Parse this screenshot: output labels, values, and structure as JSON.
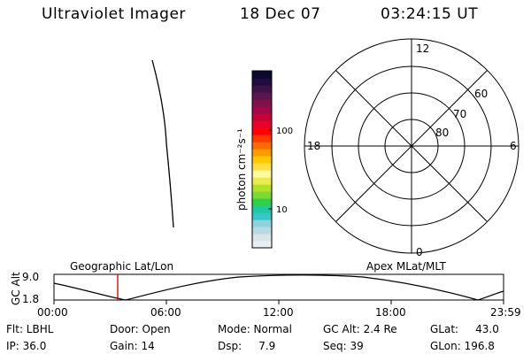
{
  "header": {
    "instrument": "Ultraviolet Imager",
    "date": "18 Dec 07",
    "time": "03:24:15 UT"
  },
  "colorbar": {
    "unit_label": "photon cm⁻²s⁻¹",
    "tick_labels": [
      "100",
      "10"
    ],
    "colors": [
      "#e8eef2",
      "#d8e4ea",
      "#bcd8e2",
      "#8cd4dc",
      "#34c8c8",
      "#20c8a0",
      "#30d04a",
      "#7cd832",
      "#b4e028",
      "#e8ee50",
      "#fff8a0",
      "#ffe040",
      "#ffc800",
      "#ff9a00",
      "#ff6a00",
      "#ff3800",
      "#ff0008",
      "#e8002a",
      "#c80038",
      "#a0084a",
      "#80104a",
      "#5c1450",
      "#3c1248",
      "#200c40",
      "#0a0830"
    ]
  },
  "polar_plot": {
    "mlt_labels": {
      "top": "12",
      "left": "18",
      "right": "6",
      "bottom": "0"
    },
    "lat_labels": [
      "60",
      "70",
      "80"
    ]
  },
  "bottom_panel": {
    "ylabel": "GC Alt",
    "yticks": [
      "9.0",
      "1.8"
    ],
    "left_title": "Geographic Lat/Lon",
    "right_title": "Apex MLat/MLT",
    "xticks": [
      "00:00",
      "06:00",
      "12:00",
      "18:00",
      "23:59"
    ],
    "marker_time": "03:24",
    "marker_color": "#cc0000"
  },
  "info": {
    "flt": "Flt: LBHL",
    "ip": "IP: 36.0",
    "door": "Door: Open",
    "gain": "Gain: 14",
    "mode": "Mode: Normal",
    "dsp": "Dsp:     7.9",
    "gcalt": "GC Alt: 2.4 Re",
    "seq": "Seq: 39",
    "glat": "GLat:     43.0",
    "glon": "GLon: 196.8"
  }
}
